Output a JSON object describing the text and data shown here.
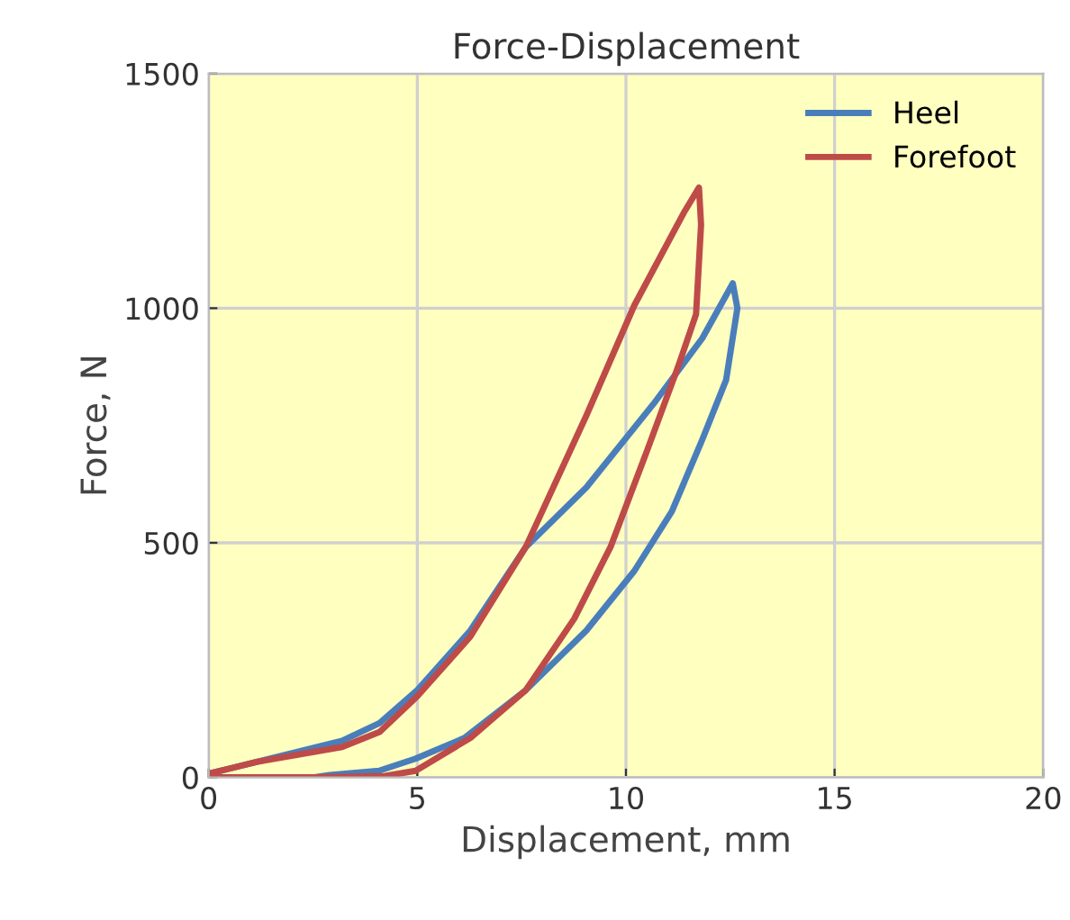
{
  "chart_data": {
    "type": "line",
    "title": "Force-Displacement",
    "xlabel": "Displacement, mm",
    "ylabel": "Force, N",
    "xlim": [
      0,
      20
    ],
    "xticks": [
      0,
      5,
      10,
      15,
      20
    ],
    "ylim": [
      0,
      1500
    ],
    "yticks": [
      0,
      500,
      1000,
      1500
    ],
    "grid": true,
    "legend": "top right",
    "marker": "none",
    "line_style": "solid",
    "series": [
      {
        "name": "Heel",
        "color": "#4a7ebb",
        "x": [
          0,
          1.15,
          3.2,
          4.1,
          5,
          6.27,
          7.6,
          9.05,
          10.66,
          11.83,
          12.56,
          12.67,
          12.4,
          11.83,
          11.1,
          10.2,
          9.05,
          7.6,
          6.13,
          4.96,
          4.08,
          2.9,
          2.5
        ],
        "values": [
          8,
          33,
          78,
          116,
          186,
          313,
          491,
          618,
          796,
          936,
          1053,
          1000,
          847,
          720,
          567,
          440,
          313,
          186,
          84,
          40,
          14,
          5,
          0
        ]
      },
      {
        "name": "Forefoot",
        "color": "#be4b48",
        "x": [
          0,
          1.15,
          3.2,
          4.1,
          5,
          6.27,
          7.6,
          9.05,
          10.2,
          11.39,
          11.75,
          11.8,
          11.68,
          11.24,
          10.5,
          9.63,
          8.76,
          7.6,
          6.27,
          4.96,
          4.23,
          2.6,
          0
        ],
        "values": [
          8,
          33,
          65,
          97,
          173,
          300,
          491,
          771,
          1006,
          1204,
          1257,
          1178,
          987,
          873,
          695,
          491,
          338,
          186,
          84,
          14,
          3,
          0,
          0
        ]
      }
    ]
  }
}
